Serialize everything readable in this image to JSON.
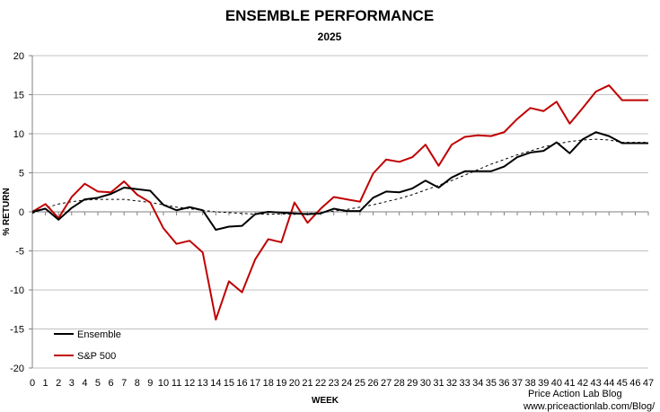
{
  "chart_data": {
    "type": "line",
    "title": "ENSEMBLE PERFORMANCE",
    "subtitle": "2025",
    "xlabel": "WEEK",
    "ylabel": "% RETURN",
    "xlim": [
      0,
      47
    ],
    "ylim": [
      -20,
      20
    ],
    "yticks": [
      20,
      15,
      10,
      5,
      0,
      -5,
      -10,
      -15,
      -20
    ],
    "y_tick_labels": [
      "20",
      "15",
      "10",
      "5",
      "0",
      "-5",
      "-10",
      "-15",
      "-20"
    ],
    "x": [
      0,
      1,
      2,
      3,
      4,
      5,
      6,
      7,
      8,
      9,
      10,
      11,
      12,
      13,
      14,
      15,
      16,
      17,
      18,
      19,
      20,
      21,
      22,
      23,
      24,
      25,
      26,
      27,
      28,
      29,
      30,
      31,
      32,
      33,
      34,
      35,
      36,
      37,
      38,
      39,
      40,
      41,
      42,
      43,
      44,
      45,
      46,
      47
    ],
    "grid": "horizontal",
    "legend_position": "bottom-left",
    "series": [
      {
        "name": "Ensemble",
        "color": "#000000",
        "values": [
          0,
          0.4,
          -1,
          0.5,
          1.6,
          1.8,
          2.3,
          3.1,
          2.9,
          2.7,
          0.9,
          0.2,
          0.6,
          0.2,
          -2.3,
          -1.9,
          -1.8,
          -0.3,
          0,
          -0.1,
          -0.2,
          -0.3,
          -0.2,
          0.4,
          0.1,
          0.1,
          1.8,
          2.6,
          2.5,
          3,
          4,
          3.1,
          4.4,
          5.2,
          5.2,
          5.2,
          5.8,
          7,
          7.6,
          7.8,
          8.9,
          7.5,
          9.3,
          10.2,
          9.7,
          8.8,
          8.8,
          8.8
        ]
      },
      {
        "name": "S&P 500",
        "color": "#c00000",
        "values": [
          0,
          1,
          -0.8,
          1.9,
          3.6,
          2.6,
          2.5,
          3.9,
          2.2,
          1.2,
          -2.1,
          -4.1,
          -3.7,
          -5.2,
          -13.8,
          -8.9,
          -10.3,
          -6.1,
          -3.5,
          -3.9,
          1.2,
          -1.4,
          0.4,
          1.9,
          1.6,
          1.3,
          4.9,
          6.7,
          6.4,
          7,
          8.6,
          5.9,
          8.6,
          9.6,
          9.8,
          9.7,
          10.2,
          11.9,
          13.3,
          12.9,
          14.1,
          11.3,
          13.3,
          15.4,
          16.2,
          14.3,
          14.3,
          14.3
        ]
      },
      {
        "name": "Ensemble trend",
        "color": "#000000",
        "style": "dashed",
        "values": [
          -0.2,
          0.5,
          1.0,
          1.3,
          1.5,
          1.6,
          1.6,
          1.6,
          1.4,
          1.2,
          0.9,
          0.6,
          0.4,
          0.2,
          0,
          -0.1,
          -0.2,
          -0.3,
          -0.3,
          -0.3,
          -0.3,
          -0.2,
          -0.1,
          0.1,
          0.3,
          0.6,
          0.9,
          1.3,
          1.7,
          2.2,
          2.8,
          3.4,
          4.0,
          4.7,
          5.4,
          6.1,
          6.7,
          7.3,
          7.8,
          8.3,
          8.7,
          9.0,
          9.2,
          9.3,
          9.2,
          8.9,
          8.9,
          8.9
        ]
      }
    ],
    "legend": [
      {
        "label": "Ensemble",
        "color": "#000000"
      },
      {
        "label": "S&P 500",
        "color": "#c00000"
      }
    ]
  },
  "credits": {
    "line1": "Price Action Lab Blog",
    "line2": "www.priceactionlab.com/Blog/"
  }
}
